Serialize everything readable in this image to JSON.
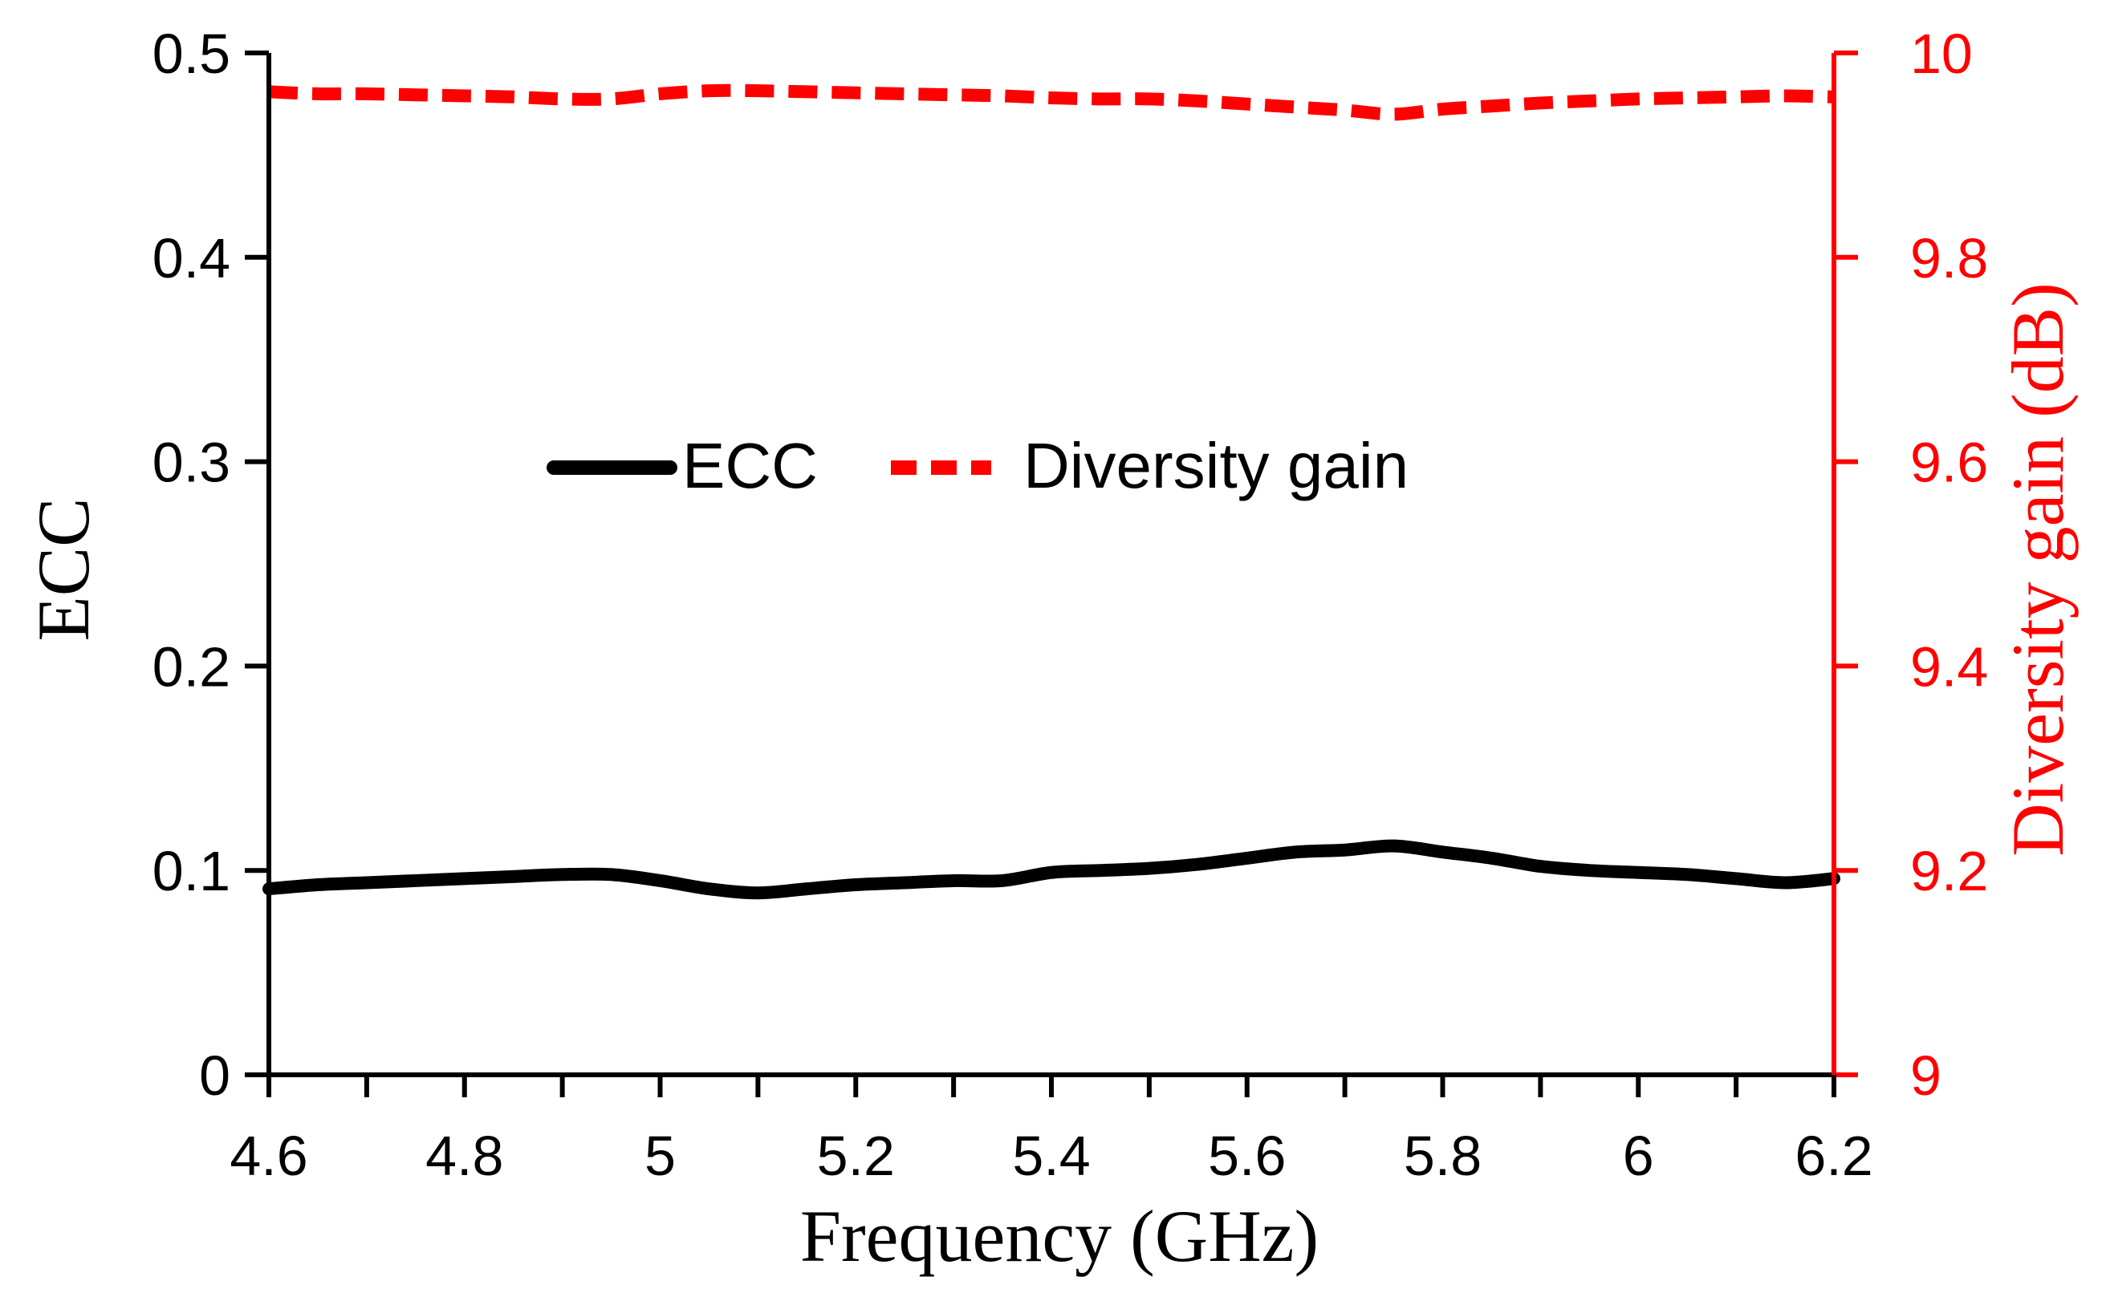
{
  "chart_data": {
    "type": "line",
    "title": "",
    "xlabel": "Frequency (GHz)",
    "ylabel": "ECC",
    "y2label": "Diversity gain (dB)",
    "xlim": [
      4.6,
      6.2
    ],
    "ylim": [
      0,
      0.5
    ],
    "y2lim": [
      9,
      10
    ],
    "xticks": [
      "4.6",
      "4.8",
      "5",
      "5.2",
      "5.4",
      "5.6",
      "5.8",
      "6",
      "6.2"
    ],
    "yticks": [
      "0",
      "0.1",
      "0.2",
      "0.3",
      "0.4",
      "0.5"
    ],
    "y2ticks": [
      "9",
      "9.2",
      "9.4",
      "9.6",
      "9.8",
      "10"
    ],
    "grid": false,
    "legend_position": "center",
    "colors": {
      "ecc": "#000000",
      "diversity": "#ff0000",
      "axis": "#000000",
      "axis2": "#ff0000"
    },
    "series": [
      {
        "name": "ECC",
        "axis": "left",
        "style": "solid",
        "color": "#000000",
        "x": [
          4.6,
          4.65,
          4.7,
          4.75,
          4.8,
          4.85,
          4.9,
          4.95,
          5.0,
          5.05,
          5.1,
          5.15,
          5.2,
          5.25,
          5.3,
          5.35,
          5.4,
          5.45,
          5.5,
          5.55,
          5.6,
          5.65,
          5.7,
          5.75,
          5.8,
          5.85,
          5.9,
          5.95,
          6.0,
          6.05,
          6.1,
          6.15,
          6.2
        ],
        "values": [
          0.091,
          0.093,
          0.094,
          0.095,
          0.096,
          0.097,
          0.098,
          0.098,
          0.095,
          0.091,
          0.089,
          0.091,
          0.093,
          0.094,
          0.095,
          0.095,
          0.099,
          0.1,
          0.101,
          0.103,
          0.106,
          0.109,
          0.11,
          0.112,
          0.109,
          0.106,
          0.102,
          0.1,
          0.099,
          0.098,
          0.096,
          0.094,
          0.096
        ]
      },
      {
        "name": "Diversity gain",
        "axis": "right",
        "style": "dashed",
        "color": "#ff0000",
        "x": [
          4.6,
          4.65,
          4.7,
          4.75,
          4.8,
          4.85,
          4.9,
          4.95,
          5.0,
          5.05,
          5.1,
          5.15,
          5.2,
          5.25,
          5.3,
          5.35,
          5.4,
          5.45,
          5.5,
          5.55,
          5.6,
          5.65,
          5.7,
          5.75,
          5.8,
          5.85,
          5.9,
          5.95,
          6.0,
          6.05,
          6.1,
          6.15,
          6.2
        ],
        "values": [
          9.962,
          9.96,
          9.96,
          9.959,
          9.958,
          9.957,
          9.955,
          9.955,
          9.96,
          9.963,
          9.963,
          9.962,
          9.961,
          9.96,
          9.959,
          9.958,
          9.956,
          9.955,
          9.955,
          9.953,
          9.95,
          9.947,
          9.944,
          9.94,
          9.945,
          9.948,
          9.951,
          9.953,
          9.955,
          9.956,
          9.957,
          9.958,
          9.957
        ]
      }
    ]
  }
}
